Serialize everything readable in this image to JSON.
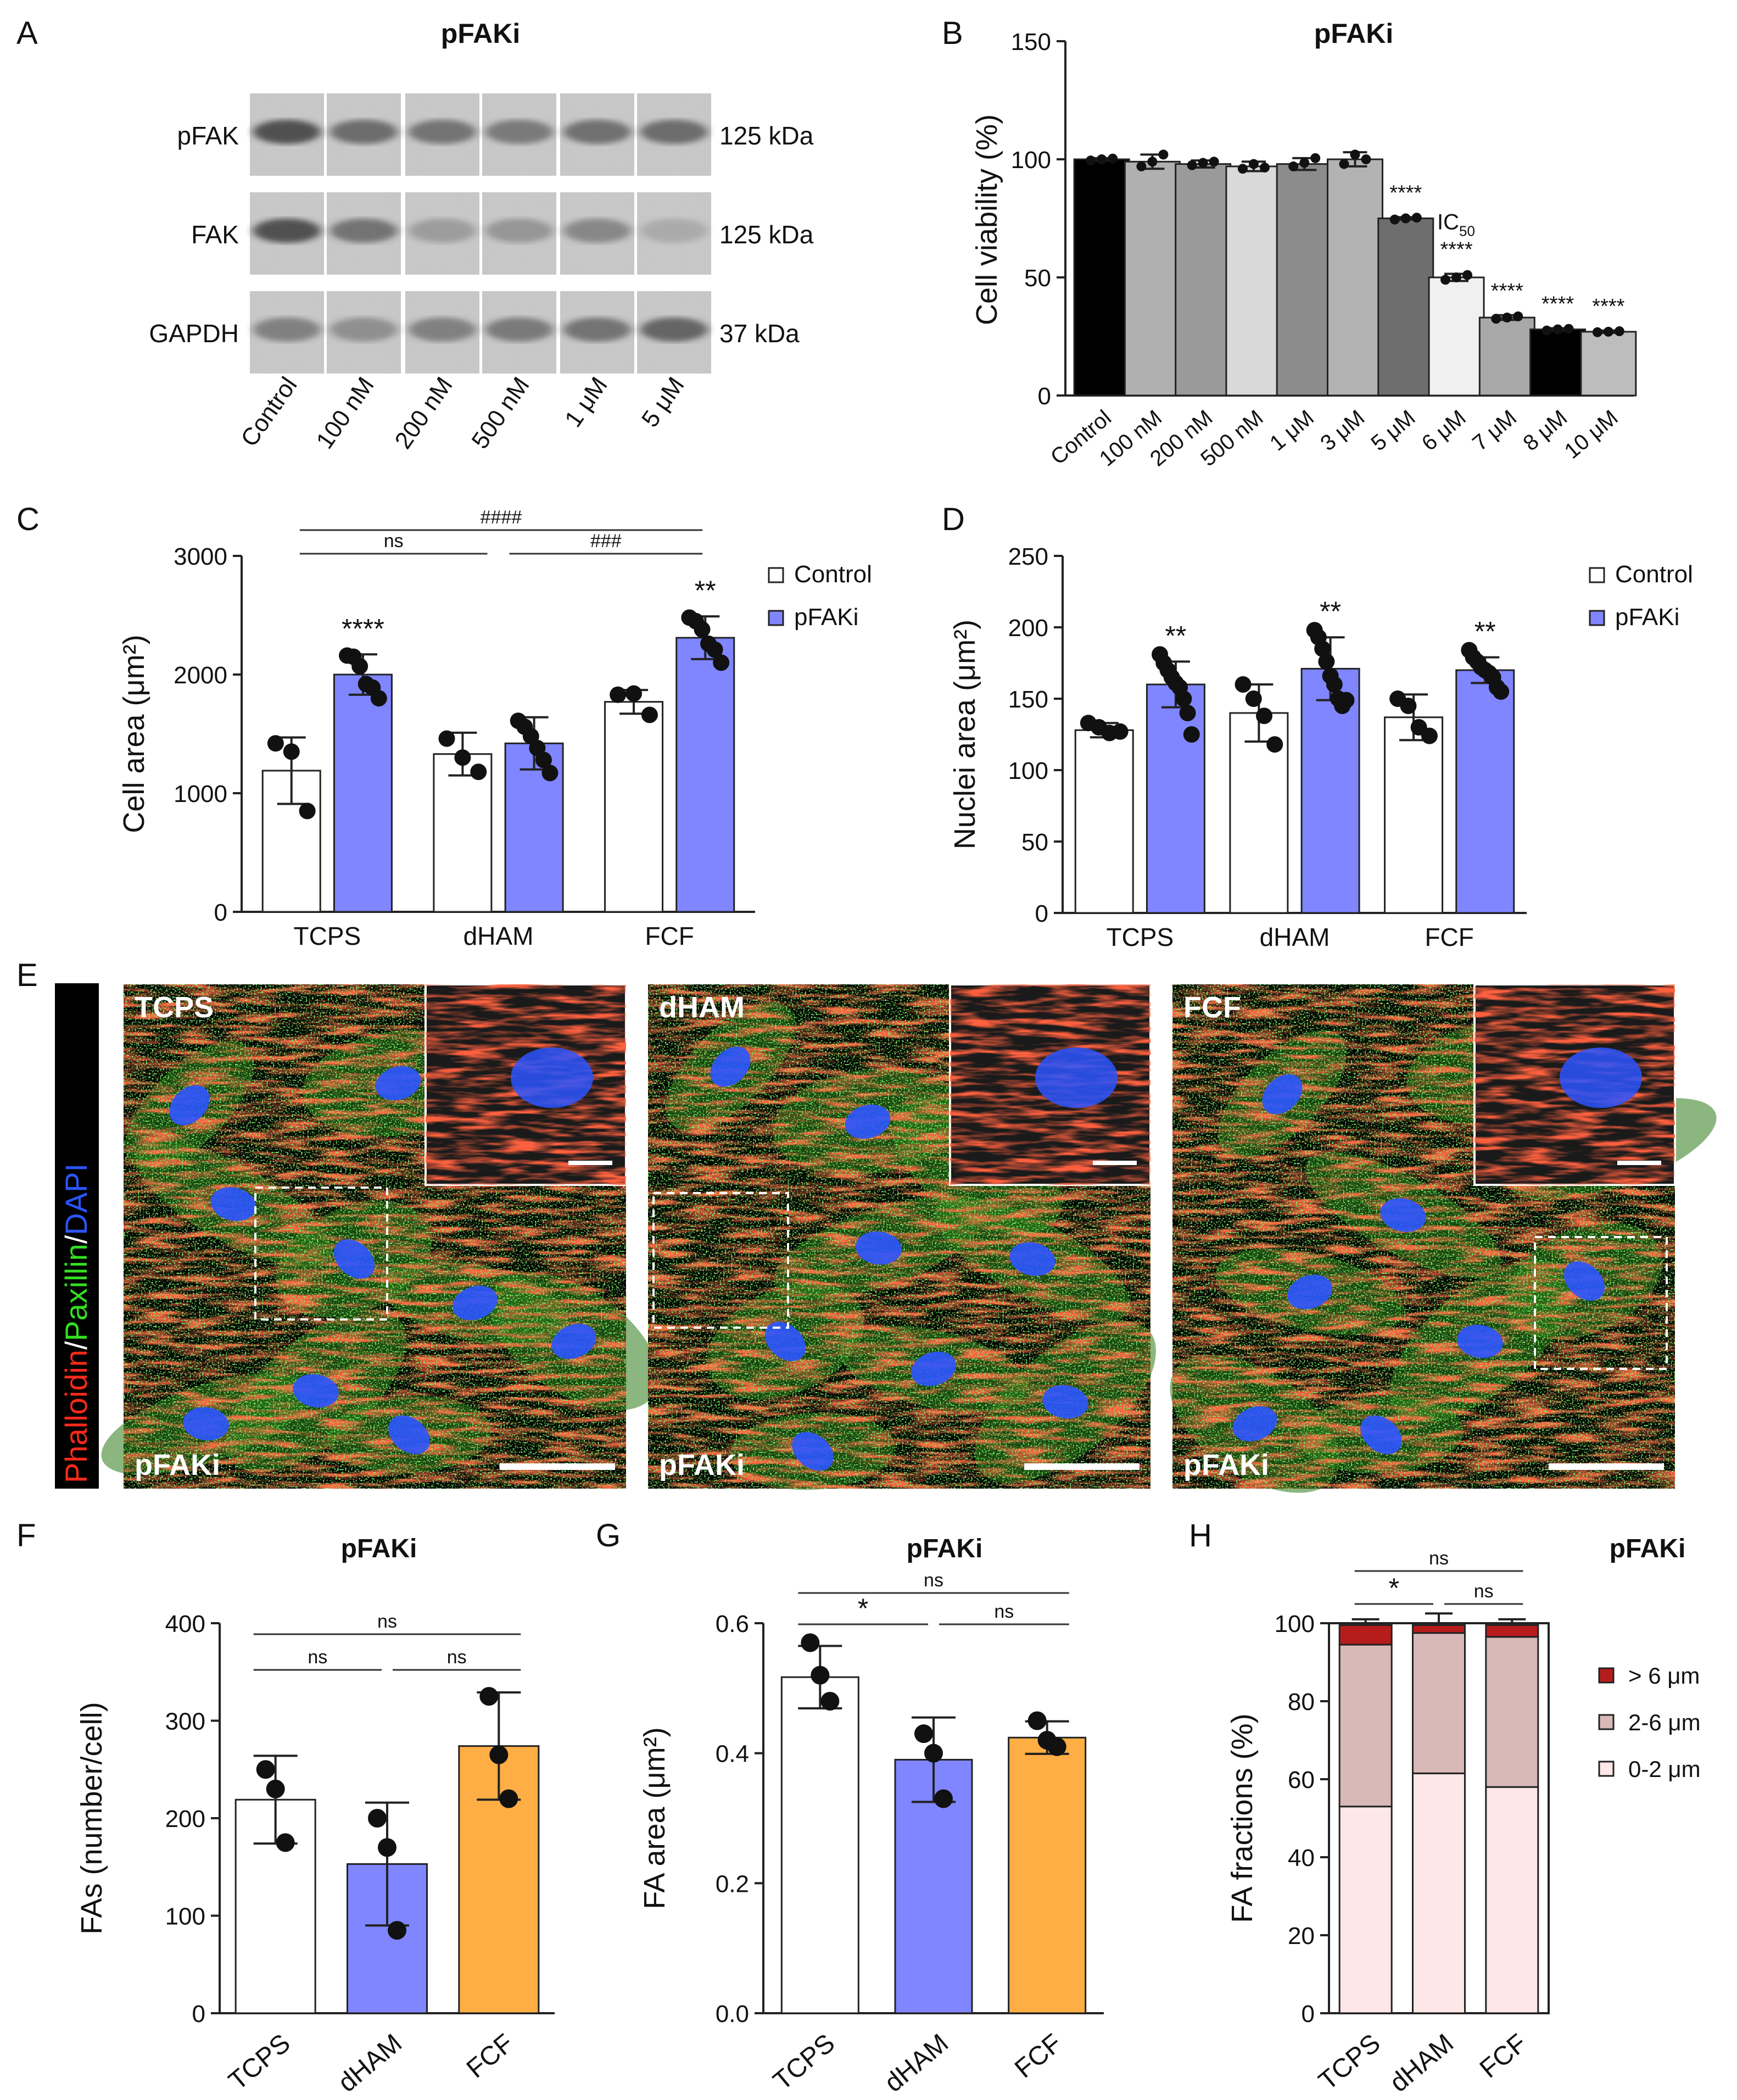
{
  "panel_letters": {
    "A": "A",
    "B": "B",
    "C": "C",
    "D": "D",
    "E": "E",
    "F": "F",
    "G": "G",
    "H": "H"
  },
  "colors": {
    "blue": "#7f86ff",
    "orange": "#ffae45",
    "dark_red": "#b71c1c",
    "mid_pink": "#d9b8b8",
    "light_pink": "#fde7e7",
    "red_stain": "#ff2a1a",
    "green_stain": "#33e020",
    "blue_stain": "#2b55ff"
  },
  "blot": {
    "title": "pFAKi",
    "rows": [
      {
        "label": "pFAK",
        "size": "125 kDa"
      },
      {
        "label": "FAK",
        "size": "125 kDa"
      },
      {
        "label": "GAPDH",
        "size": "37 kDa"
      }
    ],
    "lanes": [
      "Control",
      "100 nM",
      "200 nM",
      "500 nM",
      "1 μM",
      "5 μM"
    ]
  },
  "images": {
    "channel_label": {
      "part1": "Phalloidin",
      "sep1": "/",
      "part2": "Paxillin",
      "sep2": "/",
      "part3": "DAPI"
    },
    "panels": [
      {
        "top": "TCPS",
        "bottom": "pFAKi"
      },
      {
        "top": "dHAM",
        "bottom": "pFAKi"
      },
      {
        "top": "FCF",
        "bottom": "pFAKi"
      }
    ]
  },
  "chart_data": [
    {
      "id": "B",
      "type": "bar",
      "title": "pFAKi",
      "ylabel": "Cell viability (%)",
      "ylim": [
        0,
        150
      ],
      "yticks": [
        0,
        50,
        100,
        150
      ],
      "categories": [
        "Control",
        "100 nM",
        "200 nM",
        "500 nM",
        "1 μM",
        "3 μM",
        "5 μM",
        "6 μM",
        "7 μM",
        "8 μM",
        "10 μM"
      ],
      "values": [
        100,
        99,
        98,
        97,
        98,
        100,
        75,
        50,
        33,
        28,
        27
      ],
      "errors": [
        0.5,
        3,
        1.5,
        2,
        2.5,
        3,
        0.5,
        1.5,
        1,
        0.5,
        0.5
      ],
      "bar_colors": [
        "#000000",
        "#b0b0b0",
        "#9a9a9a",
        "#d9d9d9",
        "#8c8c8c",
        "#b3b3b3",
        "#6e6e6e",
        "#f0f0f0",
        "#a8a8a8",
        "#000000",
        "#bdbdbd"
      ],
      "points": [
        [
          99.5,
          100,
          100.3
        ],
        [
          97,
          99,
          102
        ],
        [
          97.5,
          98.5,
          99
        ],
        [
          96,
          98,
          96.5
        ],
        [
          97,
          98.5,
          100.5
        ],
        [
          98,
          102,
          100
        ],
        [
          74.5,
          75,
          75.3
        ],
        [
          49,
          50,
          51
        ],
        [
          32.5,
          33,
          33.5
        ],
        [
          27.5,
          28,
          28.2
        ],
        [
          26.8,
          27,
          27.2
        ]
      ],
      "stars": [
        "",
        "",
        "",
        "",
        "",
        "",
        "****",
        "****",
        "****",
        "****",
        "****"
      ],
      "ic50": {
        "main": "IC",
        "sub": "50"
      }
    },
    {
      "id": "C",
      "type": "bar",
      "ylabel": "Cell area (μm²)",
      "ylim": [
        0,
        3000
      ],
      "yticks": [
        0,
        1000,
        2000,
        3000
      ],
      "categories": [
        "TCPS",
        "dHAM",
        "FCF"
      ],
      "legend": [
        "Control",
        "pFAKi"
      ],
      "series": [
        {
          "name": "Control",
          "values": [
            1190,
            1330,
            1770
          ],
          "errors": [
            280,
            180,
            100
          ],
          "points": [
            [
              1420,
              1350,
              850
            ],
            [
              1460,
              1300,
              1180
            ],
            [
              1830,
              1840,
              1660
            ]
          ]
        },
        {
          "name": "pFAKi",
          "values": [
            2000,
            1420,
            2310
          ],
          "errors": [
            170,
            220,
            180
          ],
          "points": [
            [
              2160,
              2150,
              2070,
              1920,
              1890,
              1800
            ],
            [
              1610,
              1560,
              1480,
              1380,
              1280,
              1170
            ],
            [
              2480,
              2450,
              2380,
              2260,
              2210,
              2100
            ]
          ]
        }
      ],
      "stars": [
        "****",
        "",
        "**"
      ],
      "brackets": [
        {
          "label": "ns"
        },
        {
          "label": "###"
        },
        {
          "label": "####"
        }
      ]
    },
    {
      "id": "D",
      "type": "bar",
      "ylabel": "Nuclei area (μm²)",
      "ylim": [
        0,
        250
      ],
      "yticks": [
        0,
        50,
        100,
        150,
        200,
        250
      ],
      "categories": [
        "TCPS",
        "dHAM",
        "FCF"
      ],
      "legend": [
        "Control",
        "pFAKi"
      ],
      "series": [
        {
          "name": "Control",
          "values": [
            128,
            140,
            137
          ],
          "errors": [
            5,
            20,
            16
          ],
          "points": [
            [
              133,
              130,
              126,
              127
            ],
            [
              160,
              150,
              138,
              118
            ],
            [
              150,
              145,
              130,
              124
            ]
          ]
        },
        {
          "name": "pFAKi",
          "values": [
            160,
            171,
            170
          ],
          "errors": [
            16,
            22,
            9
          ],
          "points": [
            [
              181,
              175,
              170,
              165,
              161,
              158,
              150,
              140,
              125
            ],
            [
              198,
              193,
              185,
              176,
              166,
              160,
              150,
              145,
              149
            ],
            [
              184,
              179,
              176,
              172,
              170,
              168,
              165,
              158,
              155
            ]
          ]
        }
      ],
      "stars": [
        "**",
        "**",
        "**"
      ]
    },
    {
      "id": "F",
      "type": "bar",
      "title": "pFAKi",
      "ylabel": "FAs (number/cell)",
      "ylim": [
        0,
        400
      ],
      "yticks": [
        0,
        100,
        200,
        300,
        400
      ],
      "categories": [
        "TCPS",
        "dHAM",
        "FCF"
      ],
      "values": [
        219,
        153,
        274
      ],
      "errors": [
        45,
        63,
        55
      ],
      "points": [
        [
          250,
          230,
          175
        ],
        [
          200,
          170,
          85
        ],
        [
          325,
          265,
          220
        ]
      ],
      "brackets": [
        {
          "label": "ns"
        },
        {
          "label": "ns"
        },
        {
          "label": "ns"
        }
      ]
    },
    {
      "id": "G",
      "type": "bar",
      "title": "pFAKi",
      "ylabel": "FA area (μm²)",
      "ylim": [
        0,
        0.6
      ],
      "yticks": [
        0.0,
        0.2,
        0.4,
        0.6
      ],
      "ytick_labels": [
        "0.0",
        "0.2",
        "0.4",
        "0.6"
      ],
      "categories": [
        "TCPS",
        "dHAM",
        "FCF"
      ],
      "values": [
        0.517,
        0.39,
        0.424
      ],
      "errors": [
        0.048,
        0.065,
        0.025
      ],
      "points": [
        [
          0.57,
          0.52,
          0.48
        ],
        [
          0.43,
          0.4,
          0.33
        ],
        [
          0.45,
          0.42,
          0.41
        ]
      ],
      "brackets": [
        {
          "label": "*"
        },
        {
          "label": "ns"
        },
        {
          "label": "ns"
        }
      ]
    },
    {
      "id": "H",
      "type": "bar",
      "title": "pFAKi",
      "ylabel": "FA fractions (%)",
      "ylim": [
        0,
        100
      ],
      "yticks": [
        0,
        20,
        40,
        60,
        80,
        100
      ],
      "categories": [
        "TCPS",
        "dHAM",
        "FCF"
      ],
      "series": [
        {
          "name": "0-2 μm",
          "values": [
            53,
            61.5,
            58
          ],
          "errors": [
            4.5,
            6.5,
            2
          ]
        },
        {
          "name": "2-6 μm",
          "values": [
            41.5,
            36,
            38.5
          ],
          "errors": [
            0,
            0,
            0
          ]
        },
        {
          "name": "> 6 μm",
          "values": [
            5,
            2,
            3
          ],
          "errors": [
            1.5,
            3,
            1.5
          ]
        }
      ],
      "brackets": [
        {
          "label": "*"
        },
        {
          "label": "ns"
        },
        {
          "label": "ns"
        }
      ]
    }
  ]
}
